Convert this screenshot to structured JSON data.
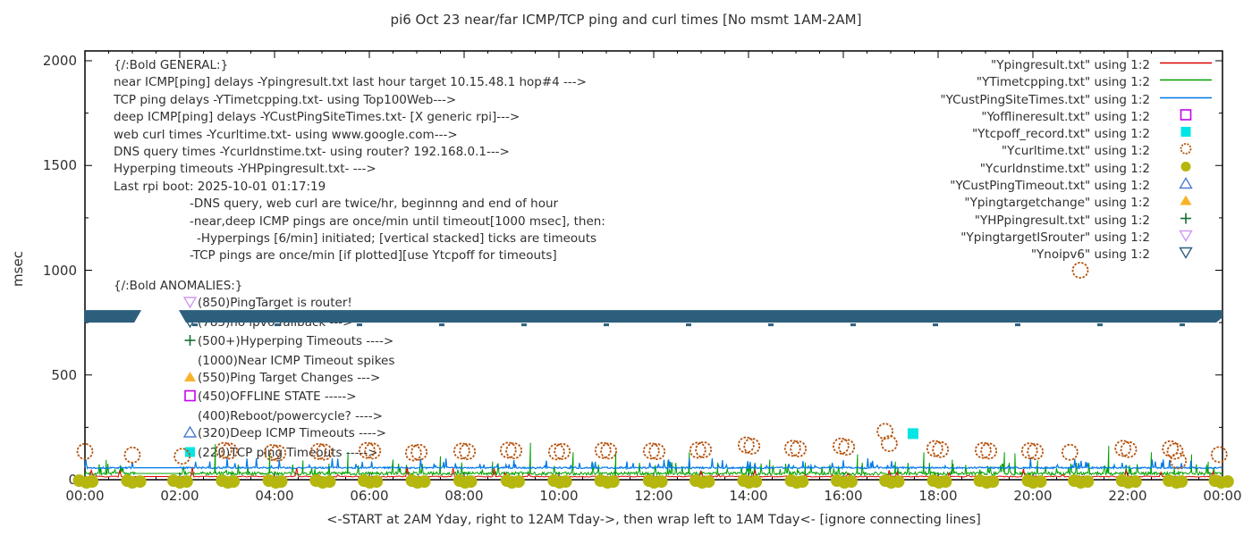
{
  "title": "pi6 Oct 23  near/far ICMP/TCP ping and curl times [No msmt 1AM-2AM]",
  "colors": {
    "near_ping_red": "#dd0000",
    "tcp_ping_green": "#00a000",
    "deep_ping_blue": "#0078e7",
    "offline_magenta": "#c303f0",
    "tcpoff_cyan": "#00e5e5",
    "curl_orange": "#b5530e",
    "dns_olive": "#b5b70e",
    "deep_timeout_blue": "#4d7ad0",
    "target_change_orange": "#f9b32a",
    "hyperping_green": "#156f34",
    "isrouter_violet": "#cf9af2",
    "noipv6_steel": "#2d5f7d",
    "text": "#303030",
    "axis": "#000000"
  },
  "legend": {
    "entries": [
      {
        "label": "\"Ypingresult.txt\" using 1:2",
        "marker": "line",
        "color": "#dd0000"
      },
      {
        "label": "\"YTimetcpping.txt\" using 1:2",
        "marker": "line",
        "color": "#00a000"
      },
      {
        "label": "\"YCustPingSiteTimes.txt\" using 1:2",
        "marker": "line",
        "color": "#0078e7"
      },
      {
        "label": "\"Yofflineresult.txt\" using 1:2",
        "marker": "square-open",
        "color": "#c303f0"
      },
      {
        "label": "\"Ytcpoff_record.txt\" using 1:2",
        "marker": "square-filled",
        "color": "#00e5e5"
      },
      {
        "label": "\"Ycurltime.txt\" using 1:2",
        "marker": "circle-open",
        "color": "#b5530e"
      },
      {
        "label": "\"Ycurldnstime.txt\" using 1:2",
        "marker": "circle-filled",
        "color": "#b5b70e"
      },
      {
        "label": "\"YCustPingTimeout.txt\" using 1:2",
        "marker": "tri-up-open",
        "color": "#4d7ad0"
      },
      {
        "label": "\"Ypingtargetchange\" using 1:2",
        "marker": "tri-up-filled",
        "color": "#f9b32a"
      },
      {
        "label": "\"YHPpingresult.txt\" using 1:2",
        "marker": "plus",
        "color": "#156f34"
      },
      {
        "label": "\"YpingtargetISrouter\" using 1:2",
        "marker": "tri-down-open",
        "color": "#cf9af2"
      },
      {
        "label": "\"Ynoipv6\" using 1:2",
        "marker": "tri-down-open",
        "color": "#2d5f7d"
      }
    ]
  },
  "annotations": {
    "general": {
      "lines": [
        {
          "text": "{/:Bold GENERAL:}",
          "indent": 0
        },
        {
          "text": "near ICMP[ping] delays -Ypingresult.txt last hour target 10.15.48.1 hop#4 --->",
          "indent": 0
        },
        {
          "text": "TCP ping delays -YTimetcpping.txt- using Top100Web--->",
          "indent": 0
        },
        {
          "text": "deep ICMP[ping] delays -YCustPingSiteTimes.txt- [X generic rpi]--->",
          "indent": 0
        },
        {
          "text": "web curl times -Ycurltime.txt- using www.google.com--->",
          "indent": 0
        },
        {
          "text": "DNS query times -Ycurldnstime.txt- using router? 192.168.0.1--->",
          "indent": 0
        },
        {
          "text": "Hyperping timeouts -YHPpingresult.txt- --->",
          "indent": 0
        },
        {
          "text": "Last rpi boot: 2025-10-01 01:17:19",
          "indent": 0
        },
        {
          "text": "-DNS query, web curl are twice/hr, beginnng and end of hour",
          "indent": 85
        },
        {
          "text": "-near,deep ICMP pings are once/min until timeout[1000 msec], then:",
          "indent": 85
        },
        {
          "text": "-Hyperpings [6/min] initiated; [vertical stacked] ticks are timeouts",
          "indent": 93
        },
        {
          "text": "-TCP pings are once/min [if plotted][use Ytcpoff for timeouts]",
          "indent": 85
        }
      ]
    },
    "anomalies": {
      "header": "{/:Bold ANOMALIES:}",
      "items": [
        {
          "marker": "tri-down-open",
          "color": "#cf9af2",
          "text": "(850)PingTarget is router!"
        },
        {
          "marker": "tri-down-open",
          "color": "#2d5f7d",
          "text": "(785)no ipv6 fallback --->",
          "obscured_by_band": true
        },
        {
          "marker": "plus",
          "color": "#156f34",
          "text": "(500+)Hyperping Timeouts ---->"
        },
        {
          "marker": "none",
          "color": "",
          "text": "(1000)Near ICMP Timeout spikes"
        },
        {
          "marker": "tri-up-filled",
          "color": "#f9b32a",
          "text": "(550)Ping Target Changes --->"
        },
        {
          "marker": "square-open",
          "color": "#c303f0",
          "text": "(450)OFFLINE STATE ----->"
        },
        {
          "marker": "none",
          "color": "",
          "text": "(400)Reboot/powercycle? ---->"
        },
        {
          "marker": "tri-up-open",
          "color": "#4d7ad0",
          "text": "(320)Deep ICMP Timeouts ---->"
        },
        {
          "marker": "square-filled",
          "color": "#00e5e5",
          "text": "(220)TCP ping Timeouts ----->"
        }
      ]
    }
  },
  "chart_data": {
    "type": "line",
    "title": "pi6 Oct 23  near/far ICMP/TCP ping and curl times [No msmt 1AM-2AM]",
    "xlabel": "<-START at 2AM Yday, right to 12AM Tday->, then wrap left to 1AM Tday<- [ignore connecting lines]",
    "ylabel": "msec",
    "x_tick_labels": [
      "00:00",
      "02:00",
      "04:00",
      "06:00",
      "08:00",
      "10:00",
      "12:00",
      "14:00",
      "16:00",
      "18:00",
      "20:00",
      "22:00",
      "00:00"
    ],
    "y_ticks": [
      0,
      500,
      1000,
      1500,
      2000
    ],
    "x_range_hours": [
      0,
      24
    ],
    "y_range": [
      0,
      2045
    ],
    "grid": false,
    "legend_position": "top-right-inside",
    "no_measurement_gap_hours": [
      1.05,
      2.0
    ],
    "series": [
      {
        "name": "Ypingresult.txt",
        "type": "noisy-line",
        "color": "#dd0000",
        "baseline_msec": 15,
        "noise_msec": 5
      },
      {
        "name": "YTimetcpping.txt",
        "type": "noisy-line",
        "color": "#00a000",
        "baseline_msec": 30,
        "noise_msec": 16,
        "spikes_hour_msec": [
          [
            0.45,
            95
          ],
          [
            0.75,
            70
          ],
          [
            2.75,
            170
          ],
          [
            3.9,
            120
          ],
          [
            4.6,
            92
          ],
          [
            5.55,
            132
          ],
          [
            6.5,
            96
          ],
          [
            7.5,
            112
          ],
          [
            8.6,
            86
          ],
          [
            9.4,
            176
          ],
          [
            10.3,
            131
          ],
          [
            11.2,
            130
          ],
          [
            12.3,
            92
          ],
          [
            12.75,
            131
          ],
          [
            13.35,
            82
          ],
          [
            14.45,
            96
          ],
          [
            15.2,
            82
          ],
          [
            16.3,
            121
          ],
          [
            17.1,
            86
          ],
          [
            17.7,
            131
          ],
          [
            18.3,
            96
          ],
          [
            19.4,
            131
          ],
          [
            19.62,
            126
          ],
          [
            20.1,
            92
          ],
          [
            21.6,
            161
          ],
          [
            22.5,
            131
          ],
          [
            23.35,
            121
          ],
          [
            23.7,
            86
          ]
        ]
      },
      {
        "name": "YCustPingSiteTimes.txt",
        "type": "noisy-line",
        "color": "#0078e7",
        "baseline_msec": 57,
        "noise_msec": 8
      },
      {
        "name": "Ycurltime.txt",
        "type": "scatter-open-circle",
        "color": "#b5530e",
        "points_hour_msec": [
          [
            0.0,
            135
          ],
          [
            1.0,
            118
          ],
          [
            2.05,
            112
          ],
          [
            2.93,
            140
          ],
          [
            3.05,
            137
          ],
          [
            3.95,
            130
          ],
          [
            4.07,
            127
          ],
          [
            4.93,
            135
          ],
          [
            5.05,
            132
          ],
          [
            5.95,
            140
          ],
          [
            6.07,
            137
          ],
          [
            6.93,
            128
          ],
          [
            7.05,
            131
          ],
          [
            7.95,
            137
          ],
          [
            8.07,
            134
          ],
          [
            8.93,
            141
          ],
          [
            9.05,
            138
          ],
          [
            9.95,
            133
          ],
          [
            10.07,
            135
          ],
          [
            10.93,
            140
          ],
          [
            11.05,
            137
          ],
          [
            11.95,
            137
          ],
          [
            12.07,
            134
          ],
          [
            12.93,
            141
          ],
          [
            13.05,
            143
          ],
          [
            13.95,
            166
          ],
          [
            14.07,
            160
          ],
          [
            14.93,
            150
          ],
          [
            15.05,
            147
          ],
          [
            15.95,
            161
          ],
          [
            16.07,
            155
          ],
          [
            16.88,
            231
          ],
          [
            16.97,
            172
          ],
          [
            17.93,
            149
          ],
          [
            18.05,
            144
          ],
          [
            18.95,
            140
          ],
          [
            19.07,
            137
          ],
          [
            19.93,
            138
          ],
          [
            20.05,
            134
          ],
          [
            20.78,
            131
          ],
          [
            21.0,
            1000
          ],
          [
            21.9,
            150
          ],
          [
            22.02,
            144
          ],
          [
            22.9,
            148
          ],
          [
            23.0,
            136
          ],
          [
            23.07,
            90
          ],
          [
            23.93,
            120
          ]
        ]
      },
      {
        "name": "Ycurldnstime.txt",
        "type": "scatter-filled-circle",
        "color": "#b5b70e",
        "points_hour_msec": [
          [
            0,
            4
          ],
          [
            1,
            4
          ],
          [
            2,
            4
          ],
          [
            3,
            4
          ],
          [
            4,
            4
          ],
          [
            5,
            4
          ],
          [
            6,
            4
          ],
          [
            7,
            4
          ],
          [
            8,
            4
          ],
          [
            9,
            4
          ],
          [
            10,
            4
          ],
          [
            11,
            4
          ],
          [
            12,
            4
          ],
          [
            13,
            4
          ],
          [
            14,
            4
          ],
          [
            15,
            4
          ],
          [
            16,
            4
          ],
          [
            17,
            4
          ],
          [
            18,
            4
          ],
          [
            19,
            4
          ],
          [
            20,
            4
          ],
          [
            21,
            4
          ],
          [
            22,
            4
          ],
          [
            23,
            4
          ],
          [
            23.95,
            4
          ]
        ]
      },
      {
        "name": "Ytcpoff_record.txt",
        "type": "scatter-filled-square",
        "color": "#00e5e5",
        "points_hour_msec": [
          [
            17.47,
            220
          ]
        ]
      },
      {
        "name": "Ynoipv6",
        "type": "band-of-markers",
        "color": "#2d5f7d",
        "value_msec": 780,
        "band_gap_hours": [
          1.19,
          1.98
        ]
      },
      {
        "name": "Yofflineresult.txt",
        "type": "scatter-open-square",
        "color": "#c303f0",
        "points_hour_msec": []
      },
      {
        "name": "YCustPingTimeout.txt",
        "type": "scatter-open-triangle",
        "color": "#4d7ad0",
        "points_hour_msec": []
      },
      {
        "name": "Ypingtargetchange",
        "type": "scatter-filled-triangle",
        "color": "#f9b32a",
        "points_hour_msec": []
      },
      {
        "name": "YHPpingresult.txt",
        "type": "scatter-plus",
        "color": "#156f34",
        "points_hour_msec": []
      },
      {
        "name": "YpingtargetISrouter",
        "type": "scatter-open-tri-down",
        "color": "#cf9af2",
        "points_hour_msec": []
      }
    ]
  }
}
